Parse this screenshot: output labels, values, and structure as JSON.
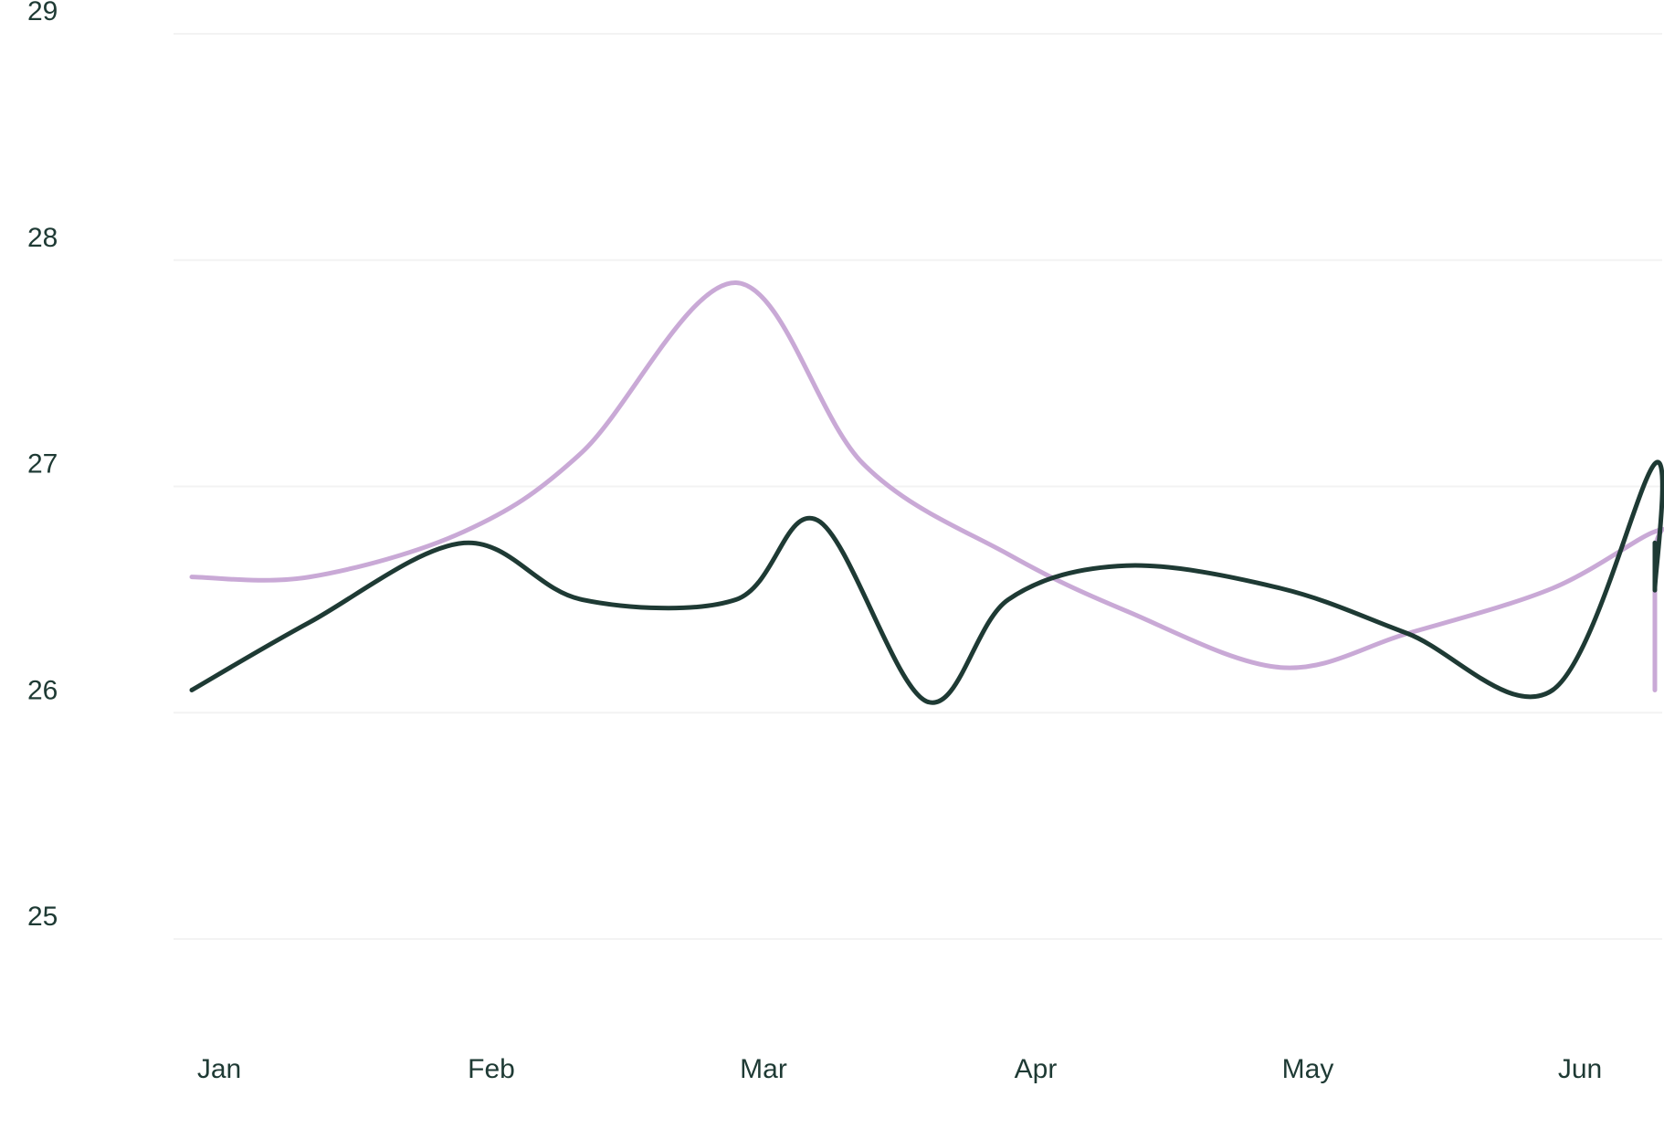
{
  "chart_data": {
    "type": "line",
    "title": "",
    "xlabel": "",
    "ylabel": "",
    "x_ticks": [
      "Jan",
      "Feb",
      "Mar",
      "Apr",
      "May",
      "Jun"
    ],
    "y_ticks": [
      "25",
      "26",
      "27",
      "28",
      "29"
    ],
    "ylim": [
      25,
      29
    ],
    "xlim": [
      "Jan",
      "Jun"
    ],
    "grid": "horizontal",
    "legend": "none",
    "series": [
      {
        "color": "#c9a9d6",
        "points": [
          {
            "x": "Jan 1",
            "y": 26.6
          },
          {
            "x": "Jan 14",
            "y": 26.6
          },
          {
            "x": "Feb 1",
            "y": 26.8
          },
          {
            "x": "Feb 14",
            "y": 27.15
          },
          {
            "x": "Mar 1",
            "y": 27.9
          },
          {
            "x": "Mar 15",
            "y": 27.1
          },
          {
            "x": "Apr 1",
            "y": 26.7
          },
          {
            "x": "Apr 14",
            "y": 26.45
          },
          {
            "x": "May 1",
            "y": 26.2
          },
          {
            "x": "May 15",
            "y": 26.35
          },
          {
            "x": "Jun 1",
            "y": 26.55
          },
          {
            "x": "Jun 15",
            "y": 26.8
          },
          {
            "x": "Jul 1",
            "y": 26.7
          },
          {
            "x": "Jul 15",
            "y": 26.1
          }
        ]
      },
      {
        "color": "#1e3a34",
        "points": [
          {
            "x": "Jan 1",
            "y": 26.1
          },
          {
            "x": "Jan 14",
            "y": 26.4
          },
          {
            "x": "Feb 1",
            "y": 26.75
          },
          {
            "x": "Feb 14",
            "y": 26.5
          },
          {
            "x": "Mar 1",
            "y": 26.5
          },
          {
            "x": "Mar 10",
            "y": 26.85
          },
          {
            "x": "Mar 22",
            "y": 26.05
          },
          {
            "x": "Apr 1",
            "y": 26.5
          },
          {
            "x": "Apr 14",
            "y": 26.65
          },
          {
            "x": "May 1",
            "y": 26.55
          },
          {
            "x": "May 15",
            "y": 26.35
          },
          {
            "x": "Jun 1",
            "y": 26.1
          },
          {
            "x": "Jun 14",
            "y": 27.1
          },
          {
            "x": "Jun 22",
            "y": 26.55
          },
          {
            "x": "Jul 1",
            "y": 26.75
          },
          {
            "x": "Jul 15",
            "y": 26.6
          }
        ]
      }
    ]
  },
  "colors": {
    "grid": "#f3f3f3",
    "axis_text": "#1e3a34"
  }
}
